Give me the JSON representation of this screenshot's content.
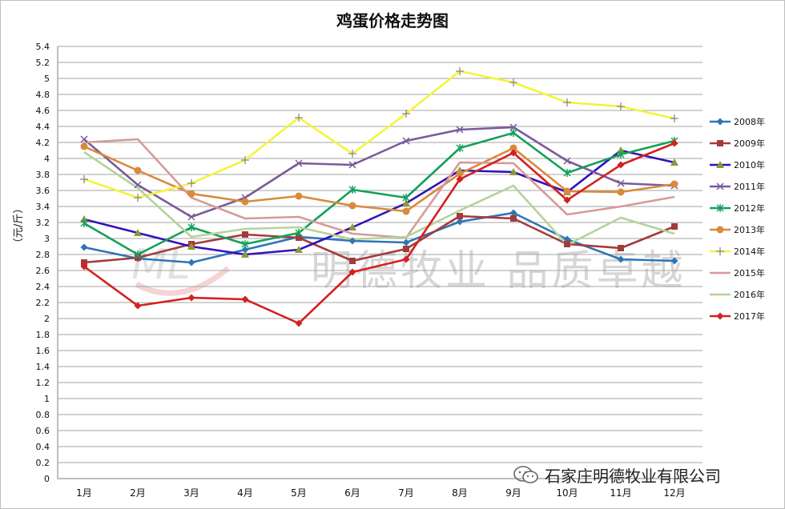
{
  "watermark": {
    "logo_text": "ML",
    "text": "明德牧业 品质卓越"
  },
  "footer": {
    "icon": "wechat-icon",
    "text": "石家庄明德牧业有限公司"
  },
  "chart_data": {
    "type": "line",
    "title": "鸡蛋价格走势图",
    "xlabel": "",
    "ylabel": "（元/斤）",
    "ylim": [
      0,
      5.4
    ],
    "ystep": 0.2,
    "ytick_labels": [
      "0",
      "0.2",
      "0.4",
      "0.6",
      "0.8",
      "1",
      "1.2",
      "1.4",
      "1.6",
      "1.8",
      "2",
      "2.2",
      "2.4",
      "2.6",
      "2.8",
      "3",
      "3.2",
      "3.4",
      "3.6",
      "3.8",
      "4",
      "4.2",
      "4.4",
      "4.6",
      "4.8",
      "5",
      "5.2",
      "5.4"
    ],
    "grid": true,
    "legend": "right",
    "categories": [
      "1月",
      "2月",
      "3月",
      "4月",
      "5月",
      "6月",
      "7月",
      "8月",
      "9月",
      "10月",
      "11月",
      "12月"
    ],
    "series": [
      {
        "name": "2008年",
        "color": "#2e75b6",
        "marker": "diamond",
        "values": [
          2.89,
          2.75,
          2.7,
          2.86,
          3.02,
          2.97,
          2.95,
          3.21,
          3.32,
          2.99,
          2.74,
          2.72
        ]
      },
      {
        "name": "2009年",
        "color": "#a33b3b",
        "marker": "square",
        "values": [
          2.7,
          2.76,
          2.93,
          3.05,
          3.01,
          2.72,
          2.87,
          3.28,
          3.25,
          2.93,
          2.88,
          3.15
        ]
      },
      {
        "name": "2010年",
        "color": "#3311bb",
        "marker": "triangle",
        "values": [
          3.24,
          3.07,
          2.9,
          2.8,
          2.86,
          3.14,
          3.44,
          3.85,
          3.83,
          3.58,
          4.1,
          3.95
        ]
      },
      {
        "name": "2011年",
        "color": "#7a5a9a",
        "marker": "x",
        "values": [
          4.24,
          3.67,
          3.27,
          3.51,
          3.94,
          3.92,
          4.22,
          4.36,
          4.39,
          3.97,
          3.69,
          3.66
        ]
      },
      {
        "name": "2012年",
        "color": "#14a05a",
        "marker": "asterisk",
        "values": [
          3.19,
          2.8,
          3.14,
          2.93,
          3.07,
          3.61,
          3.51,
          4.13,
          4.32,
          3.82,
          4.05,
          4.22
        ]
      },
      {
        "name": "2013年",
        "color": "#d98a3a",
        "marker": "circle",
        "values": [
          4.15,
          3.85,
          3.56,
          3.46,
          3.53,
          3.41,
          3.34,
          3.81,
          4.13,
          3.59,
          3.58,
          3.68
        ]
      },
      {
        "name": "2014年",
        "color": "#f4f43a",
        "marker": "plus",
        "values": [
          3.74,
          3.51,
          3.69,
          3.98,
          4.51,
          4.06,
          4.56,
          5.09,
          4.95,
          4.7,
          4.65,
          4.5
        ]
      },
      {
        "name": "2015年",
        "color": "#d79a9a",
        "marker": "none",
        "values": [
          4.2,
          4.24,
          3.51,
          3.25,
          3.27,
          3.06,
          3.01,
          3.95,
          3.94,
          3.3,
          3.4,
          3.52
        ]
      },
      {
        "name": "2016年",
        "color": "#b5d39a",
        "marker": "none",
        "values": [
          4.08,
          3.63,
          3.02,
          3.12,
          3.14,
          2.99,
          3.02,
          3.35,
          3.66,
          2.92,
          3.26,
          3.06
        ]
      },
      {
        "name": "2017年",
        "color": "#d42020",
        "marker": "diamond",
        "values": [
          2.65,
          2.16,
          2.26,
          2.24,
          1.94,
          2.58,
          2.74,
          3.74,
          4.07,
          3.48,
          3.92,
          4.19
        ]
      }
    ]
  }
}
